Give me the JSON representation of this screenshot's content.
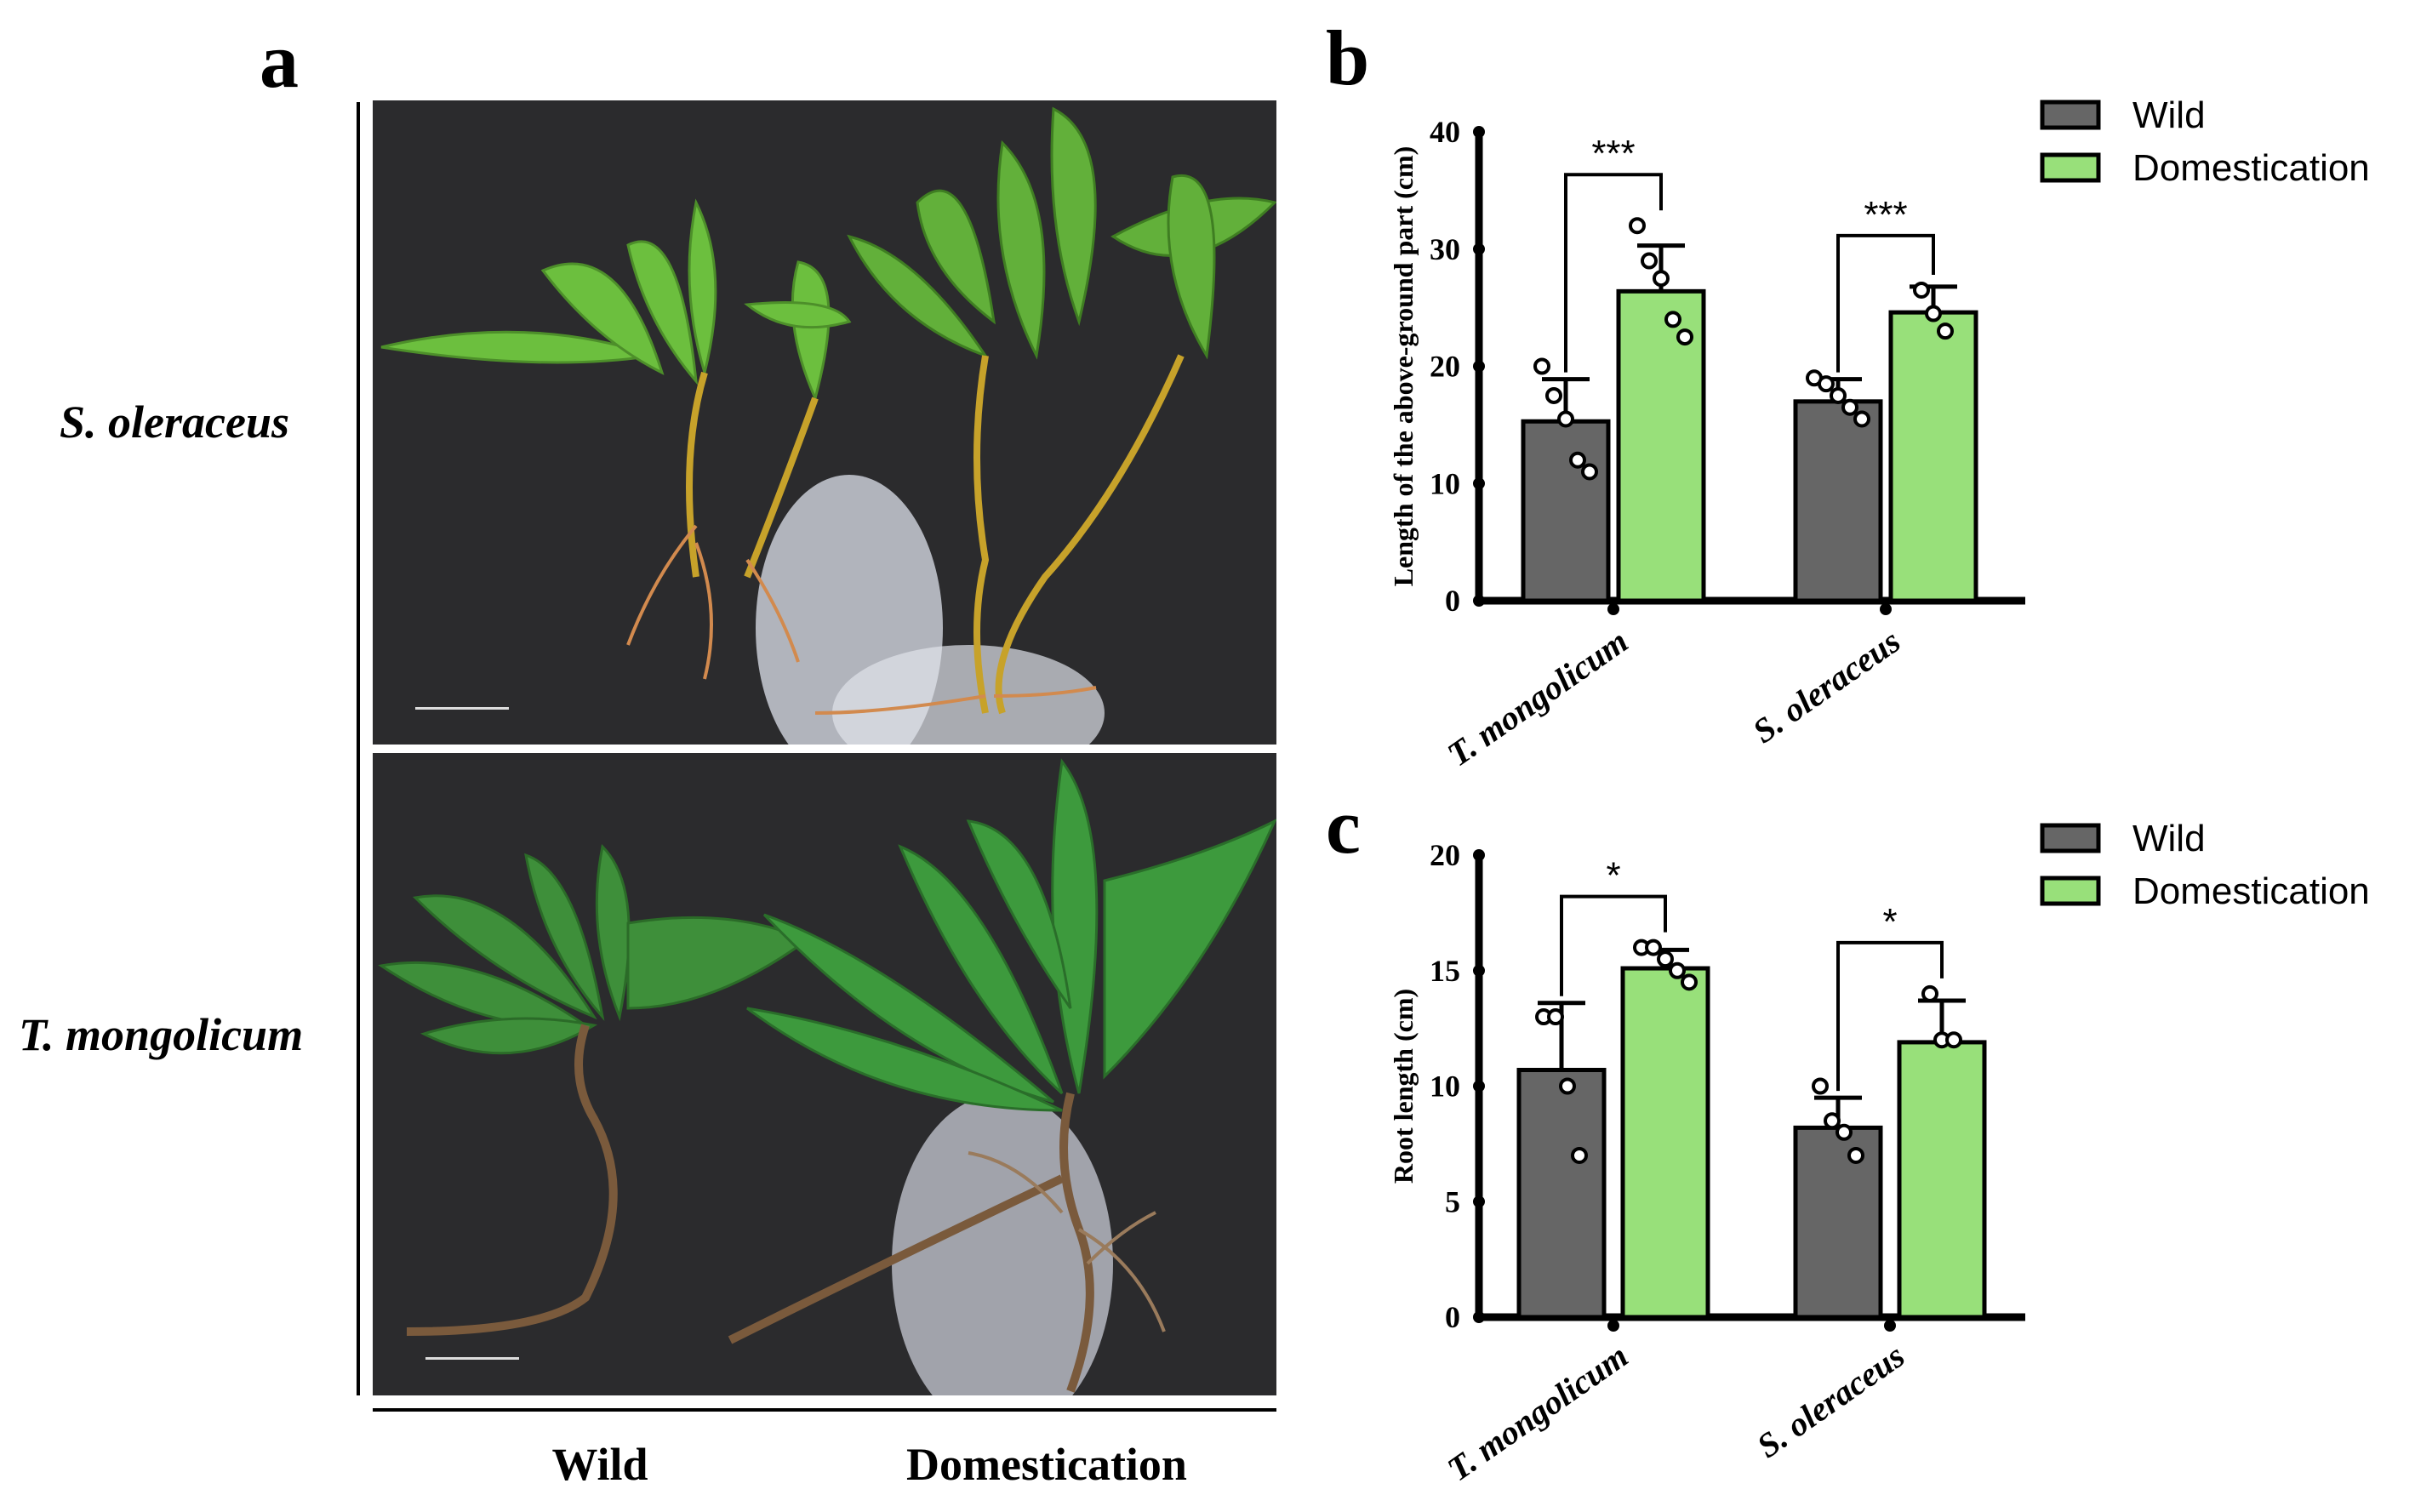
{
  "panel_a": {
    "letter": "a",
    "row_labels": [
      "S. oleraceus",
      "T. mongolicum"
    ],
    "column_labels": [
      "Wild",
      "Domestication"
    ]
  },
  "colors": {
    "wild": "#666666",
    "domestication": "#98e07a",
    "photo_background": "#2b2b2d"
  },
  "chart_data": [
    {
      "panel": "b",
      "type": "bar",
      "categories": [
        "T. mongolicum",
        "S. oleraceus"
      ],
      "ylabel": "Length of the above-ground part (cm)",
      "xlabel": "",
      "ylim": [
        0,
        40
      ],
      "yticks": [
        0,
        10,
        20,
        30,
        40
      ],
      "legend": {
        "placement": "top-right"
      },
      "series": [
        {
          "name": "Wild",
          "values": [
            15.3,
            17.0
          ],
          "errors": [
            3.6,
            1.9
          ],
          "points": [
            [
              20,
              17.5,
              15.5,
              12,
              11
            ],
            [
              19,
              18.5,
              17.5,
              16.5,
              15.5
            ]
          ]
        },
        {
          "name": "Domestication",
          "values": [
            26.4,
            24.6
          ],
          "errors": [
            3.9,
            2.2
          ],
          "points": [
            [
              32,
              29,
              27.5,
              24,
              22.5
            ],
            [
              26.5,
              24.5,
              23
            ]
          ]
        }
      ],
      "significance": [
        "***",
        "***"
      ]
    },
    {
      "panel": "c",
      "type": "bar",
      "categories": [
        "T. mongolicum",
        "S. oleraceus"
      ],
      "ylabel": "Root length (cm)",
      "xlabel": "",
      "ylim": [
        0,
        20
      ],
      "yticks": [
        0,
        5,
        10,
        15,
        20
      ],
      "legend": {
        "placement": "top-right"
      },
      "series": [
        {
          "name": "Wild",
          "values": [
            10.7,
            8.2
          ],
          "errors": [
            2.9,
            1.3
          ],
          "points": [
            [
              13,
              13,
              10,
              7
            ],
            [
              10,
              8.5,
              8,
              7
            ]
          ]
        },
        {
          "name": "Domestication",
          "values": [
            15.1,
            11.9
          ],
          "errors": [
            0.8,
            1.8
          ],
          "points": [
            [
              16,
              16,
              15.5,
              15,
              14.5
            ],
            [
              14,
              12,
              12
            ]
          ]
        }
      ],
      "significance": [
        "*",
        "*"
      ]
    }
  ]
}
